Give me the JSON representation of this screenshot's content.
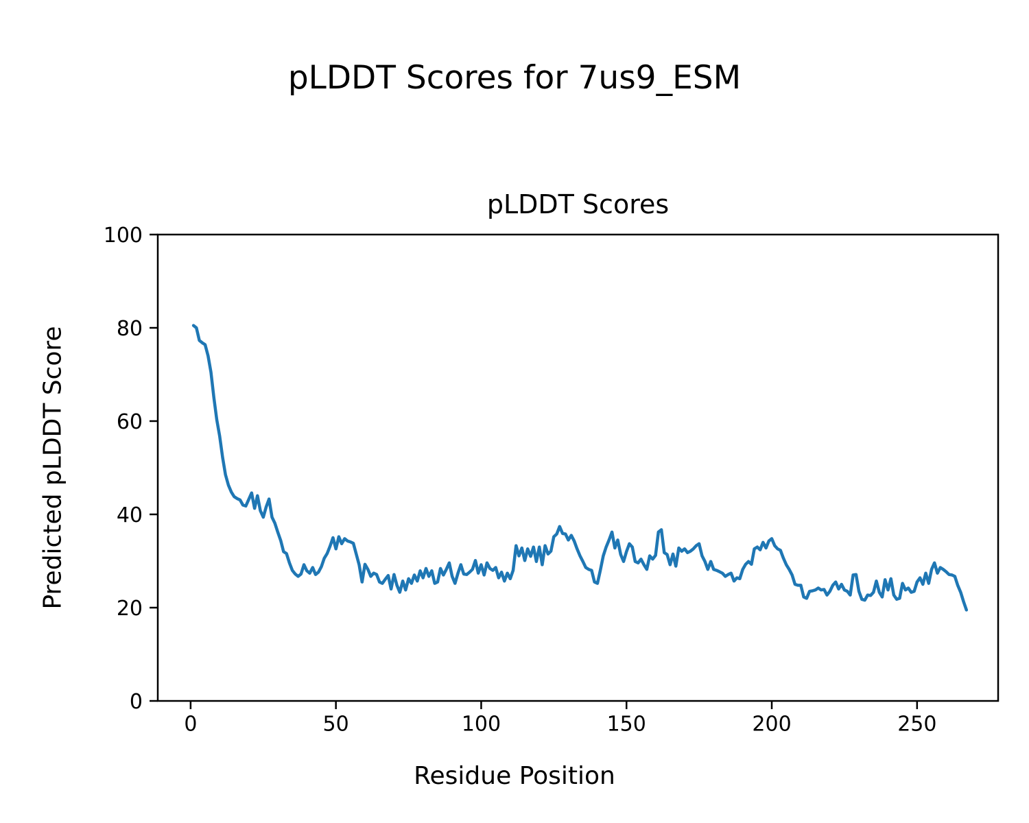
{
  "figure": {
    "suptitle": "pLDDT Scores for 7us9_ESM",
    "background_color": "#ffffff",
    "text_color": "#000000"
  },
  "chart_data": {
    "type": "line",
    "title": "pLDDT Scores",
    "xlabel": "Residue Position",
    "ylabel": "Predicted pLDDT Score",
    "xlim": [
      -11.3,
      277.9
    ],
    "ylim": [
      0,
      100
    ],
    "xticks": [
      0,
      50,
      100,
      150,
      200,
      250
    ],
    "yticks": [
      0,
      20,
      40,
      60,
      80,
      100
    ],
    "grid": false,
    "legend": "none",
    "line_color": "#1f77b4",
    "line_width": 4.5,
    "axes_color": "#000000",
    "series": [
      {
        "name": "pLDDT",
        "x_start": 1,
        "x_step": 1,
        "values": [
          80.5,
          80.0,
          77.3,
          76.8,
          76.4,
          74.0,
          70.5,
          65.0,
          60.3,
          56.8,
          52.2,
          48.5,
          46.3,
          44.8,
          43.8,
          43.4,
          43.1,
          42.0,
          41.8,
          43.2,
          44.6,
          41.3,
          44.0,
          40.8,
          39.4,
          41.6,
          43.3,
          39.4,
          38.1,
          36.2,
          34.4,
          32.0,
          31.6,
          29.6,
          28.0,
          27.2,
          26.7,
          27.2,
          29.2,
          27.9,
          27.4,
          28.6,
          27.1,
          27.6,
          28.8,
          30.6,
          31.6,
          33.2,
          35.0,
          32.6,
          35.2,
          33.7,
          34.8,
          34.3,
          34.1,
          33.8,
          31.5,
          29.2,
          25.5,
          29.3,
          28.2,
          26.7,
          27.4,
          27.1,
          25.5,
          25.2,
          26.1,
          26.9,
          24.0,
          27.1,
          24.8,
          23.3,
          25.7,
          23.8,
          26.2,
          25.2,
          27.0,
          25.7,
          27.9,
          26.4,
          28.4,
          26.7,
          27.9,
          25.2,
          25.5,
          28.4,
          27.0,
          28.2,
          29.6,
          26.7,
          25.2,
          27.4,
          29.2,
          27.2,
          27.1,
          27.6,
          28.2,
          30.1,
          27.4,
          29.2,
          27.0,
          29.6,
          28.4,
          28.0,
          28.6,
          26.4,
          27.6,
          25.7,
          27.4,
          26.2,
          28.0,
          33.3,
          31.1,
          32.8,
          30.1,
          32.6,
          31.0,
          33.0,
          29.9,
          33.0,
          29.2,
          33.3,
          31.5,
          32.1,
          35.2,
          35.8,
          37.4,
          35.9,
          35.8,
          34.5,
          35.5,
          34.3,
          32.6,
          31.1,
          29.9,
          28.6,
          28.2,
          28.0,
          25.5,
          25.2,
          28.0,
          31.1,
          33.0,
          34.5,
          36.2,
          32.8,
          34.5,
          31.4,
          29.9,
          32.0,
          33.7,
          33.0,
          29.9,
          29.6,
          30.4,
          29.2,
          28.2,
          31.1,
          30.4,
          31.2,
          36.2,
          36.7,
          31.8,
          31.4,
          29.2,
          31.5,
          28.9,
          32.8,
          32.1,
          32.6,
          31.8,
          32.1,
          32.6,
          33.3,
          33.7,
          31.1,
          29.9,
          28.2,
          29.9,
          28.2,
          28.0,
          27.7,
          27.4,
          26.7,
          27.1,
          27.4,
          25.7,
          26.4,
          26.2,
          28.2,
          29.3,
          29.9,
          29.3,
          32.6,
          33.0,
          32.4,
          34.0,
          32.8,
          34.3,
          34.8,
          33.3,
          32.6,
          32.3,
          30.6,
          29.2,
          28.2,
          27.0,
          25.0,
          24.8,
          24.8,
          22.3,
          22.0,
          23.5,
          23.6,
          23.8,
          24.2,
          23.8,
          23.9,
          22.7,
          23.5,
          24.8,
          25.5,
          24.0,
          25.0,
          23.8,
          23.5,
          22.7,
          27.0,
          27.1,
          23.5,
          21.8,
          21.6,
          22.7,
          22.6,
          23.3,
          25.7,
          23.3,
          22.3,
          26.0,
          23.8,
          26.2,
          22.7,
          21.8,
          22.0,
          25.2,
          23.8,
          24.2,
          23.3,
          23.5,
          25.5,
          26.4,
          25.0,
          27.4,
          25.2,
          28.2,
          29.6,
          27.4,
          28.6,
          28.2,
          27.7,
          27.1,
          27.0,
          26.7,
          24.8,
          23.3,
          21.3,
          19.5
        ]
      }
    ]
  }
}
